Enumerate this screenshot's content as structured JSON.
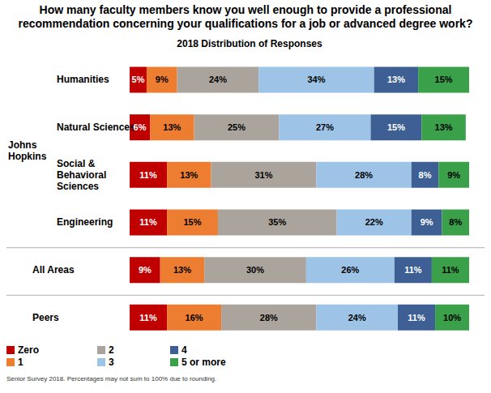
{
  "chart_data": {
    "type": "bar",
    "orientation": "horizontal",
    "stacked": true,
    "data_labels": true,
    "tick_labels": "y",
    "title": "How many faculty members know you well enough to provide a professional recommendation concerning your qualifications for a job or advanced degree work?",
    "subtitle": "2018 Distribution of Responses",
    "note": "Senior Survey 2018. Percentages may not sum to 100% due to rounding.",
    "categories": [
      "Humanities",
      "Natural Sciences",
      "Social & Behavioral Sciences",
      "Engineering",
      "All Areas",
      "Peers"
    ],
    "groups": [
      {
        "name": "Johns Hopkins",
        "categories": [
          "Humanities",
          "Natural Sciences",
          "Social & Behavioral Sciences",
          "Engineering"
        ]
      }
    ],
    "xlim": [
      0,
      100
    ],
    "series": [
      {
        "name": "Zero",
        "color": "#c00000",
        "values": [
          5,
          6,
          11,
          11,
          9,
          11
        ],
        "value_labels": [
          "5%",
          "6%",
          "11%",
          "11%",
          "9%",
          "11%"
        ]
      },
      {
        "name": "1",
        "color": "#ed7d31",
        "values": [
          9,
          13,
          13,
          15,
          13,
          16
        ],
        "value_labels": [
          "9%",
          "13%",
          "13%",
          "15%",
          "13%",
          "16%"
        ]
      },
      {
        "name": "2",
        "color": "#aba49c",
        "values": [
          24,
          25,
          31,
          35,
          30,
          28
        ],
        "value_labels": [
          "24%",
          "25%",
          "31%",
          "35%",
          "30%",
          "28%"
        ]
      },
      {
        "name": "3",
        "color": "#9dc3e6",
        "values": [
          34,
          27,
          28,
          22,
          26,
          24
        ],
        "value_labels": [
          "34%",
          "27%",
          "28%",
          "22%",
          "26%",
          "24%"
        ]
      },
      {
        "name": "4",
        "color": "#3e5f93",
        "values": [
          13,
          15,
          8,
          9,
          11,
          11
        ],
        "value_labels": [
          "13%",
          "15%",
          "8%",
          "9%",
          "11%",
          "11%"
        ]
      },
      {
        "name": "5 or more",
        "color": "#3aa04a",
        "values": [
          15,
          13,
          9,
          8,
          11,
          10
        ],
        "value_labels": [
          "15%",
          "13%",
          "9%",
          "8%",
          "11%",
          "10%"
        ]
      }
    ]
  }
}
